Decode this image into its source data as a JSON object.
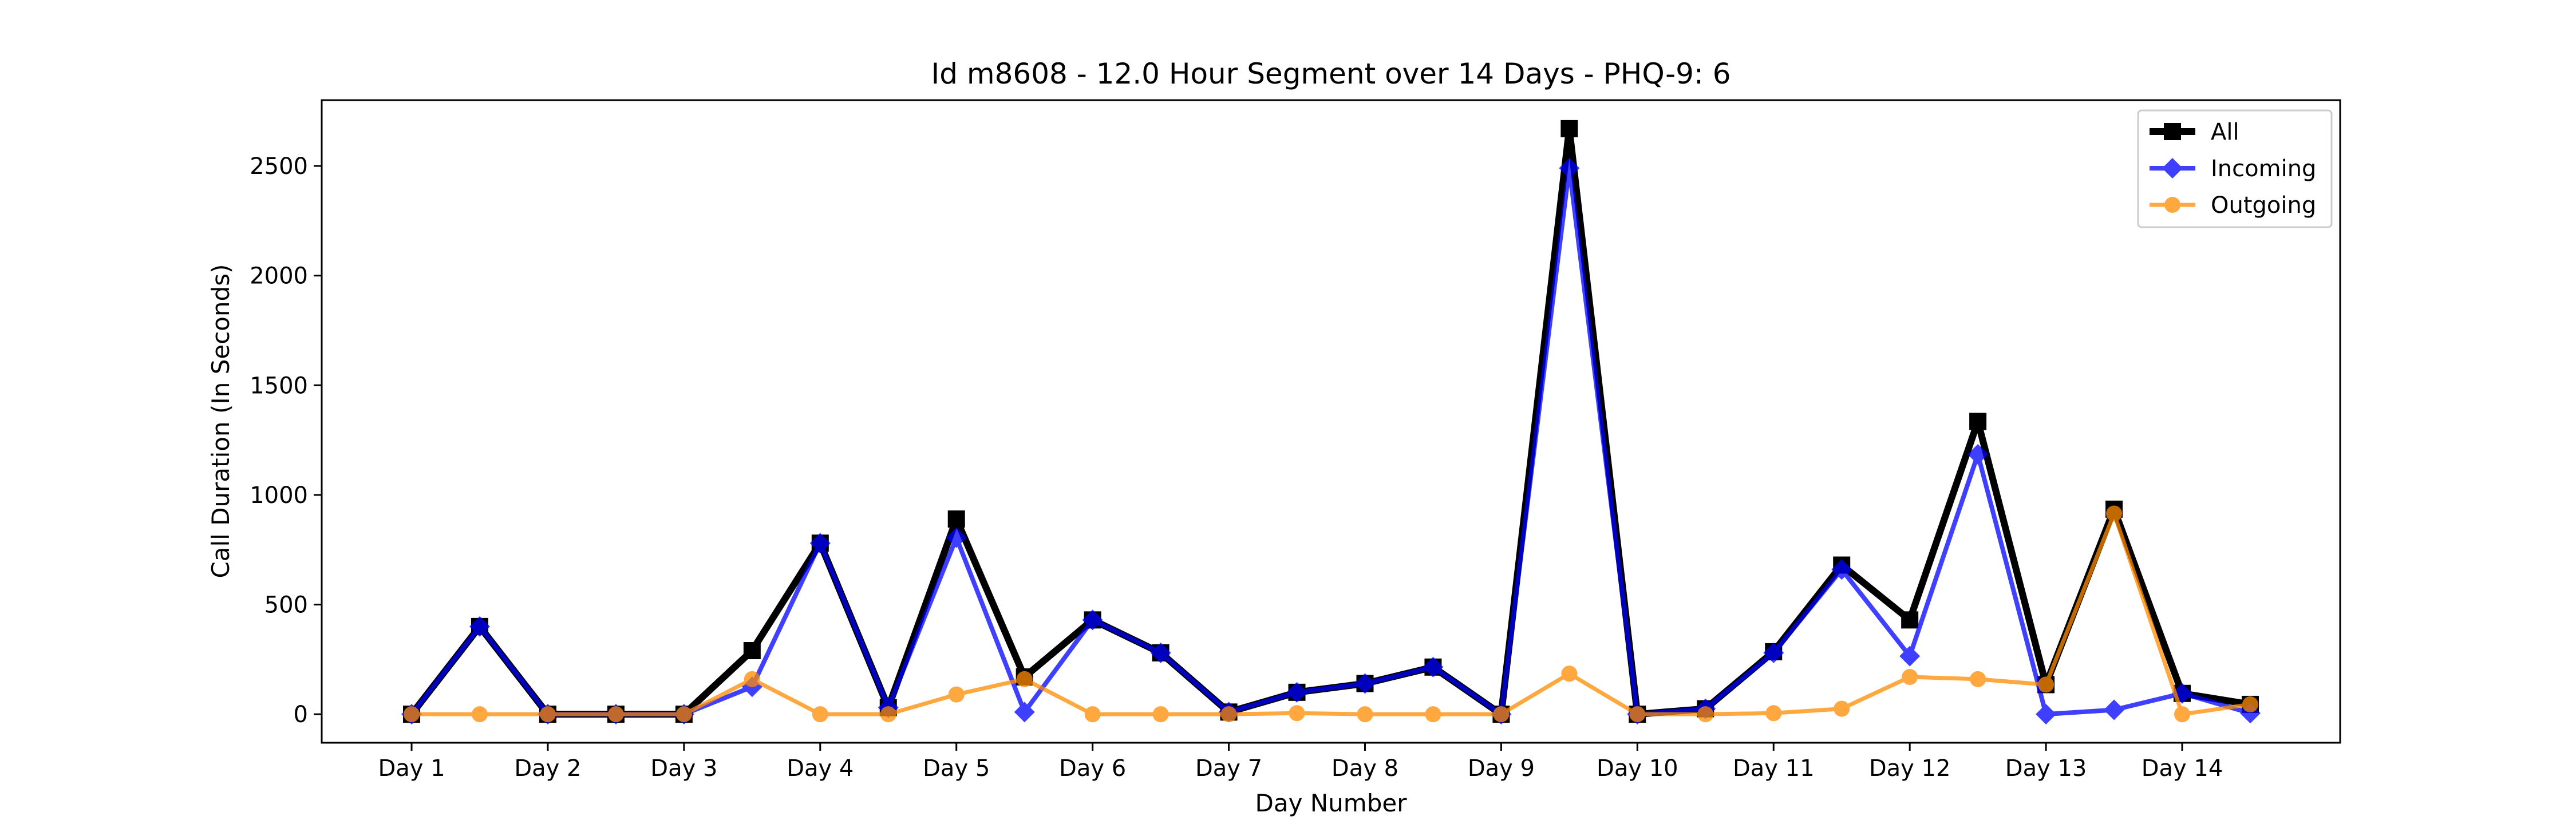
{
  "chart_data": {
    "type": "line",
    "title": "Id m8608 - 12.0 Hour Segment over 14 Days - PHQ-9: 6",
    "xlabel": "Day Number",
    "ylabel": "Call Duration (In Seconds)",
    "categories": [
      "Day 1",
      "Day 2",
      "Day 3",
      "Day 4",
      "Day 5",
      "Day 6",
      "Day 7",
      "Day 8",
      "Day 9",
      "Day 10",
      "Day 11",
      "Day 12",
      "Day 13",
      "Day 14"
    ],
    "yticks": [
      0,
      500,
      1000,
      1500,
      2000,
      2500
    ],
    "xlim": [
      -0.66,
      14.16
    ],
    "ylim": [
      -130,
      2800
    ],
    "grid": false,
    "legend_position": "top-right",
    "x": [
      0,
      0.5,
      1,
      1.5,
      2,
      2.5,
      3,
      3.5,
      4,
      4.5,
      5,
      5.5,
      6,
      6.5,
      7,
      7.5,
      8,
      8.5,
      9,
      9.5,
      10,
      10.5,
      11,
      11.5,
      12,
      12.5,
      13,
      13.5
    ],
    "series": [
      {
        "name": "All",
        "color": "#000000",
        "marker": "square",
        "values": [
          0,
          400,
          0,
          0,
          0,
          290,
          780,
          30,
          890,
          170,
          430,
          280,
          10,
          100,
          140,
          215,
          0,
          2670,
          0,
          25,
          285,
          680,
          430,
          1335,
          135,
          935,
          95,
          45
        ]
      },
      {
        "name": "Incoming",
        "color": "#0000ff",
        "marker": "diamond",
        "values": [
          0,
          400,
          0,
          0,
          0,
          125,
          780,
          30,
          805,
          10,
          430,
          280,
          10,
          100,
          140,
          215,
          0,
          2490,
          0,
          25,
          280,
          660,
          265,
          1185,
          0,
          20,
          95,
          5
        ]
      },
      {
        "name": "Outgoing",
        "color": "#ff8c00",
        "marker": "circle",
        "values": [
          0,
          0,
          0,
          0,
          0,
          160,
          0,
          0,
          90,
          160,
          0,
          0,
          0,
          5,
          0,
          0,
          0,
          185,
          0,
          0,
          5,
          25,
          170,
          160,
          135,
          915,
          0,
          45
        ]
      }
    ]
  }
}
